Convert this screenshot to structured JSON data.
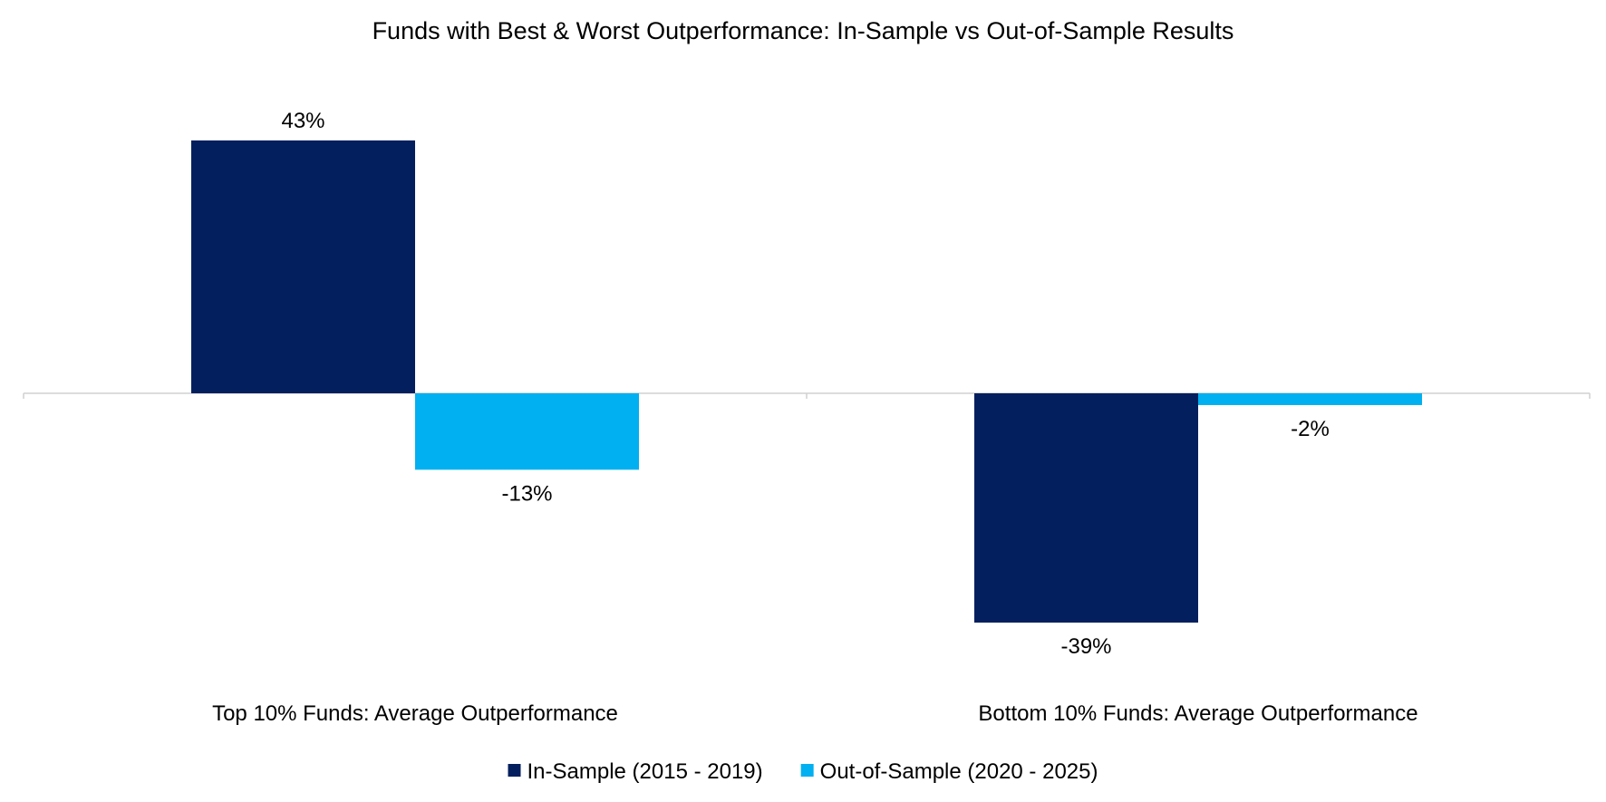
{
  "chart_data": {
    "type": "bar",
    "title": "Funds with Best & Worst Outperformance: In-Sample vs Out-of-Sample Results",
    "categories": [
      "Top 10% Funds: Average Outperformance",
      "Bottom 10% Funds: Average Outperformance"
    ],
    "series": [
      {
        "name": "In-Sample (2015 - 2019)",
        "color": "#031F5E",
        "values": [
          43,
          -39
        ],
        "labels": [
          "43%",
          "-39%"
        ]
      },
      {
        "name": "Out-of-Sample (2020 - 2025)",
        "color": "#00B0F0",
        "values": [
          -13,
          -2
        ],
        "labels": [
          "-13%",
          "-2%"
        ]
      }
    ],
    "ylim": [
      -39,
      43
    ],
    "value_unit": "%",
    "grid": false,
    "legend_position": "bottom",
    "axis_color": "#D0D0D0"
  }
}
